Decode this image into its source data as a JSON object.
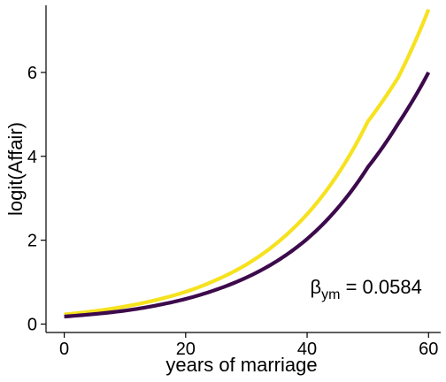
{
  "chart_data": {
    "type": "line",
    "xlabel": "years of marriage",
    "ylabel": "logit(Affair)",
    "xlim": [
      -3,
      62
    ],
    "ylim": [
      -0.2,
      7.6
    ],
    "x_ticks": [
      0,
      20,
      40,
      60
    ],
    "x_tick_labels": [
      "0",
      "20",
      "40",
      "60"
    ],
    "y_ticks": [
      0,
      2,
      4,
      6
    ],
    "y_tick_labels": [
      "0",
      "2",
      "4",
      "6"
    ],
    "grid": false,
    "legend": "none",
    "series": [
      {
        "color": "#f6e21e",
        "x": [
          0,
          5,
          10,
          15,
          20,
          25,
          30,
          35,
          40,
          45,
          50,
          55,
          60
        ],
        "y": [
          0.23,
          0.31,
          0.42,
          0.57,
          0.77,
          1.05,
          1.42,
          1.93,
          2.62,
          3.56,
          4.83,
          5.88,
          7.5
        ]
      },
      {
        "color": "#3d0a4c",
        "x": [
          0,
          5,
          10,
          15,
          20,
          25,
          30,
          35,
          40,
          45,
          50,
          55,
          60
        ],
        "y": [
          0.18,
          0.24,
          0.32,
          0.44,
          0.6,
          0.82,
          1.11,
          1.5,
          2.03,
          2.76,
          3.74,
          4.78,
          6.0
        ]
      }
    ],
    "annotation": {
      "symbol": "β",
      "subscript": "ym",
      "text": " = 0.0584",
      "x": 40.5,
      "y": 0.9
    }
  }
}
